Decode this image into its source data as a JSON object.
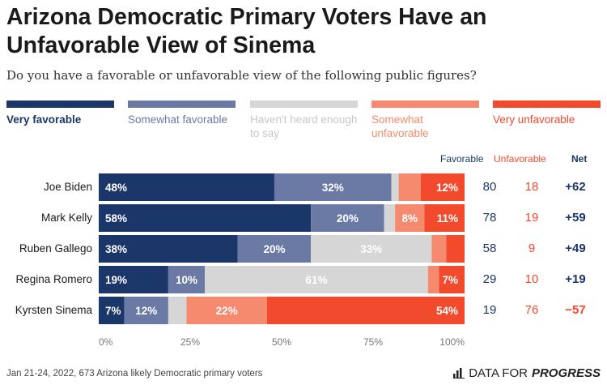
{
  "title": "Arizona Democratic Primary Voters Have an Unfavorable View of Sinema",
  "subtitle": "Do you have a favorable or unfavorable view of the following public figures?",
  "legend": [
    {
      "label": "Very favorable",
      "color": "#1b3668",
      "text_color": "#1b3668"
    },
    {
      "label": "Somewhat favorable",
      "color": "#6b7aa5",
      "text_color": "#6b7aa5"
    },
    {
      "label": "Haven't heard enough to say",
      "color": "#d6d6d6",
      "text_color": "#c8c8c8"
    },
    {
      "label": "Somewhat unfavorable",
      "color": "#f58a6e",
      "text_color": "#f58a6e"
    },
    {
      "label": "Very unfavorable",
      "color": "#f24a2d",
      "text_color": "#f24a2d"
    }
  ],
  "columns": {
    "favorable": "Favorable",
    "unfavorable": "Unfavorable",
    "net": "Net"
  },
  "chart_data": {
    "type": "bar",
    "orientation": "horizontal-stacked",
    "categories": [
      "Joe Biden",
      "Mark Kelly",
      "Ruben Gallego",
      "Regina Romero",
      "Kyrsten Sinema"
    ],
    "series": [
      {
        "name": "Very favorable",
        "values": [
          48,
          58,
          38,
          19,
          7
        ],
        "labels": [
          "48%",
          "58%",
          "38%",
          "19%",
          "7%"
        ]
      },
      {
        "name": "Somewhat favorable",
        "values": [
          32,
          20,
          20,
          10,
          12
        ],
        "labels": [
          "32%",
          "20%",
          "20%",
          "10%",
          "12%"
        ]
      },
      {
        "name": "Haven't heard enough to say",
        "values": [
          2,
          3,
          33,
          61,
          5
        ],
        "labels": [
          "",
          "",
          "33%",
          "61%",
          ""
        ]
      },
      {
        "name": "Somewhat unfavorable",
        "values": [
          6,
          8,
          4,
          3,
          22
        ],
        "labels": [
          "",
          "8%",
          "",
          "",
          "22%"
        ]
      },
      {
        "name": "Very unfavorable",
        "values": [
          12,
          11,
          5,
          7,
          54
        ],
        "labels": [
          "12%",
          "11%",
          "",
          "7%",
          "54%"
        ]
      }
    ],
    "favorable": [
      "80",
      "78",
      "58",
      "29",
      "19"
    ],
    "unfavorable": [
      "18",
      "19",
      "9",
      "10",
      "76"
    ],
    "net": [
      "+62",
      "+59",
      "+49",
      "+19",
      "−57"
    ],
    "net_colors": [
      "#1b3668",
      "#1b3668",
      "#1b3668",
      "#1b3668",
      "#f24a2d"
    ],
    "xticks": [
      "0%",
      "25%",
      "50%",
      "75%",
      "100%"
    ],
    "xlim": [
      0,
      100
    ]
  },
  "footer": "Jan 21-24, 2022, 673 Arizona likely Democratic primary voters",
  "brand": {
    "prefix": "DATA FOR",
    "emphasis": "PROGRESS",
    "icon": "bar-chart-icon"
  }
}
